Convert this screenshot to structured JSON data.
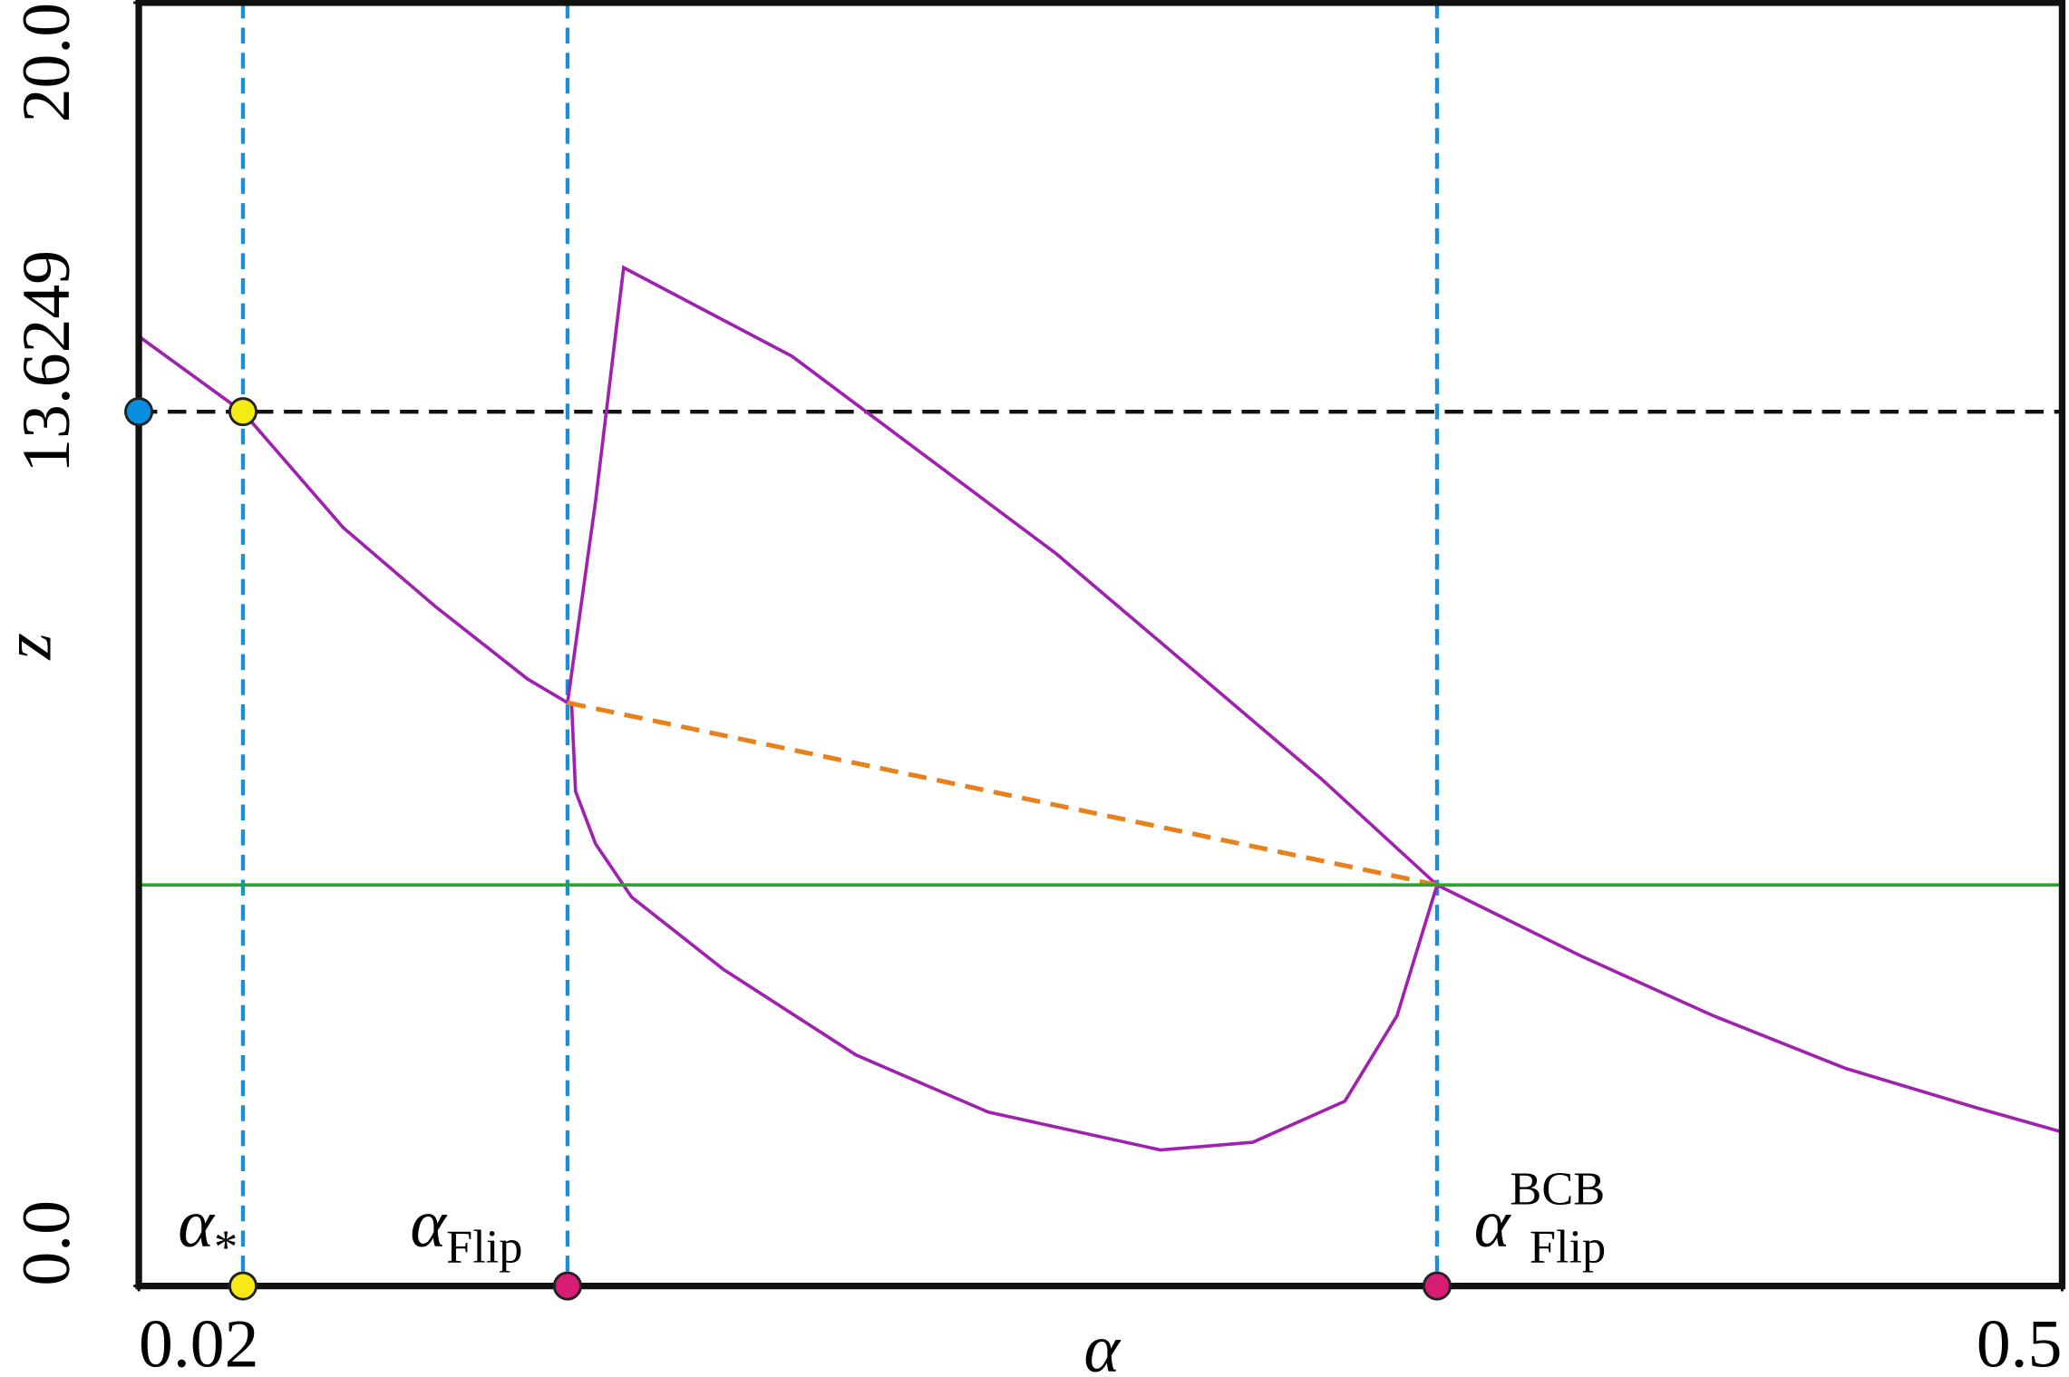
{
  "chart_data": {
    "type": "line",
    "x_label": "α",
    "y_label": "z",
    "xlim": [
      0.02,
      0.5
    ],
    "ylim": [
      0,
      20
    ],
    "xticks": [
      0.02,
      0.5
    ],
    "yticks": [
      {
        "value": 0,
        "label": "0.0"
      },
      13.6249,
      {
        "value": 20,
        "label": "20.0"
      }
    ],
    "hline": {
      "value": 13.6249,
      "color": "#111111"
    },
    "series": [
      {
        "color": "#a020b0",
        "x": [
          0.02,
          0.046,
          0.071,
          0.094,
          0.117,
          0.127
        ],
        "values": [
          14.8,
          13.62,
          11.82,
          10.59,
          9.46,
          9.09
        ]
      },
      {
        "color": "#a020b0",
        "x": [
          0.344,
          0.38,
          0.413,
          0.446,
          0.479,
          0.5
        ],
        "values": [
          6.25,
          5.14,
          4.21,
          3.39,
          2.77,
          2.4
        ]
      },
      {
        "color": "#a020b0",
        "x": [
          0.127,
          0.134,
          0.141,
          0.183,
          0.249,
          0.315,
          0.344
        ],
        "values": [
          9.09,
          12.23,
          15.87,
          14.49,
          11.41,
          7.91,
          6.25
        ]
      },
      {
        "color": "#a020b0",
        "x": [
          0.128,
          0.129,
          0.134,
          0.143,
          0.166,
          0.199,
          0.232,
          0.275,
          0.298,
          0.321,
          0.334,
          0.344
        ],
        "values": [
          9.09,
          7.71,
          6.89,
          6.06,
          4.93,
          3.6,
          2.71,
          2.12,
          2.24,
          2.88,
          4.21,
          6.25
        ]
      },
      {
        "color": "#e8801c",
        "dashed": true,
        "x": [
          0.127,
          0.344
        ],
        "values": [
          9.09,
          6.25
        ]
      },
      {
        "color": "#22aa22",
        "x": [
          0.02,
          0.5
        ],
        "values": [
          6.25,
          6.25
        ]
      }
    ],
    "vlines": [
      {
        "x": 0.046,
        "label": "α",
        "sub": "*"
      },
      {
        "x": 0.127,
        "label": "α",
        "sub": "Flip"
      },
      {
        "x": 0.344,
        "label": "α",
        "sub": "Flip",
        "sup": "BCB"
      }
    ],
    "vline_color": "#1a8fd8",
    "points": [
      {
        "x": 0.02,
        "y": 13.6249,
        "color": "#0a8ee0"
      },
      {
        "x": 0.046,
        "y": 13.6249,
        "color": "#f5ea14"
      },
      {
        "x": 0.046,
        "y": 0,
        "color": "#f5ea14"
      },
      {
        "x": 0.127,
        "y": 0,
        "color": "#d81b73"
      },
      {
        "x": 0.344,
        "y": 0,
        "color": "#d81b73"
      }
    ]
  }
}
